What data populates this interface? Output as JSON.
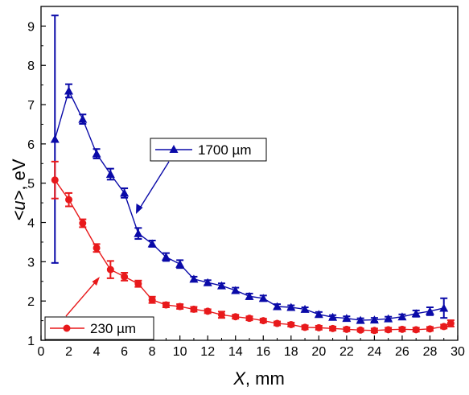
{
  "chart_data": {
    "type": "line",
    "xlabel": {
      "var": "X",
      "unit": ", mm"
    },
    "ylabel": {
      "var": "<u>",
      "unit": ", eV"
    },
    "xlim": [
      0,
      30
    ],
    "ylim": [
      1,
      9.5
    ],
    "x_ticks": [
      0,
      2,
      4,
      6,
      8,
      10,
      12,
      14,
      16,
      18,
      20,
      22,
      24,
      26,
      28,
      30
    ],
    "y_ticks": [
      1,
      2,
      3,
      4,
      5,
      6,
      7,
      8,
      9
    ],
    "grid": false,
    "series": [
      {
        "name": "1700 µm",
        "color": "#0a0aa8",
        "marker": "triangle",
        "x": [
          1,
          2,
          3,
          4,
          5,
          6,
          7,
          8,
          9,
          10,
          11,
          12,
          13,
          14,
          15,
          16,
          17,
          18,
          19,
          20,
          21,
          22,
          23,
          24,
          25,
          26,
          27,
          28,
          29
        ],
        "y": [
          6.12,
          7.35,
          6.63,
          5.75,
          5.23,
          4.75,
          3.72,
          3.46,
          3.12,
          2.94,
          2.56,
          2.47,
          2.39,
          2.27,
          2.12,
          2.07,
          1.86,
          1.84,
          1.79,
          1.66,
          1.59,
          1.56,
          1.51,
          1.52,
          1.55,
          1.6,
          1.68,
          1.74,
          1.82
        ],
        "err": [
          3.15,
          0.17,
          0.12,
          0.12,
          0.14,
          0.12,
          0.14,
          0.08,
          0.1,
          0.1,
          0.06,
          0.06,
          0.06,
          0.07,
          0.07,
          0.07,
          0.06,
          0.05,
          0.05,
          0.06,
          0.05,
          0.05,
          0.05,
          0.05,
          0.05,
          0.06,
          0.08,
          0.1,
          0.25
        ]
      },
      {
        "name": "230 µm",
        "color": "#e8191b",
        "marker": "circle",
        "x": [
          1,
          2,
          3,
          4,
          5,
          6,
          7,
          8,
          9,
          10,
          11,
          12,
          13,
          14,
          15,
          16,
          17,
          18,
          19,
          20,
          21,
          22,
          23,
          24,
          25,
          26,
          27,
          28,
          29,
          29.5
        ],
        "y": [
          5.08,
          4.58,
          3.98,
          3.35,
          2.8,
          2.62,
          2.44,
          2.03,
          1.9,
          1.86,
          1.79,
          1.74,
          1.65,
          1.6,
          1.56,
          1.5,
          1.43,
          1.4,
          1.33,
          1.32,
          1.3,
          1.28,
          1.26,
          1.25,
          1.27,
          1.28,
          1.27,
          1.29,
          1.35,
          1.43
        ],
        "err": [
          0.47,
          0.17,
          0.1,
          0.1,
          0.22,
          0.1,
          0.08,
          0.08,
          0.06,
          0.06,
          0.06,
          0.05,
          0.08,
          0.05,
          0.05,
          0.05,
          0.05,
          0.05,
          0.05,
          0.05,
          0.05,
          0.05,
          0.04,
          0.05,
          0.05,
          0.05,
          0.05,
          0.05,
          0.05,
          0.08
        ]
      }
    ]
  }
}
